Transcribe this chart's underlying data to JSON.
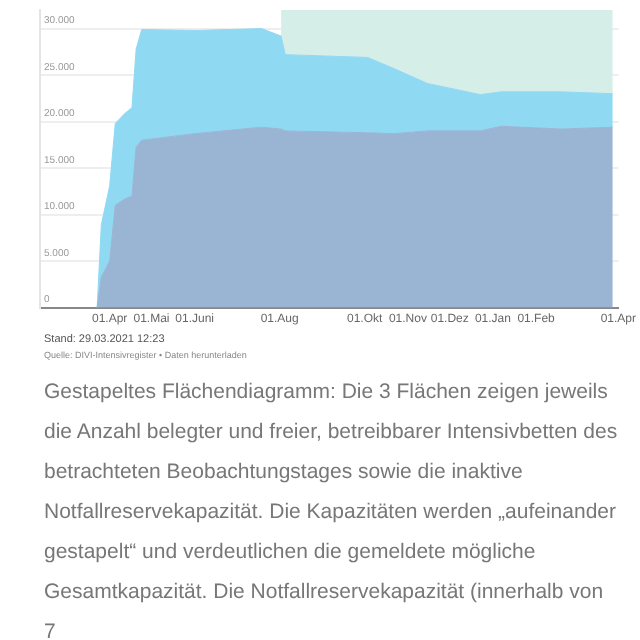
{
  "chart_data": {
    "type": "area",
    "stacked": true,
    "x": [
      "2020-03-23",
      "2020-03-26",
      "2020-04-01",
      "2020-04-05",
      "2020-04-12",
      "2020-04-17",
      "2020-04-20",
      "2020-04-24",
      "2020-06-01",
      "2020-07-19",
      "2020-08-02",
      "2020-08-05",
      "2020-10-03",
      "2020-10-22",
      "2020-11-15",
      "2020-12-23",
      "2021-01-07",
      "2021-02-19",
      "2021-03-28"
    ],
    "series": [
      {
        "color": "#9ab5d3",
        "values": [
          0,
          3300,
          5000,
          11000,
          11700,
          12000,
          17300,
          18000,
          18700,
          19400,
          19200,
          19000,
          18800,
          18700,
          19000,
          19000,
          19500,
          19200,
          19400
        ]
      },
      {
        "color": "#8fd9f3",
        "values": [
          0,
          5600,
          8100,
          8800,
          9200,
          9500,
          10500,
          11900,
          11100,
          10600,
          10000,
          8200,
          8100,
          7000,
          5100,
          3900,
          3700,
          4000,
          3600
        ]
      },
      {
        "color": "#d6eee8",
        "values": [
          null,
          null,
          null,
          null,
          null,
          null,
          null,
          null,
          null,
          null,
          2800,
          4800,
          5100,
          6300,
          7900,
          9100,
          8800,
          8800,
          9000
        ]
      }
    ],
    "xlim": [
      "2020-02-11",
      "2021-04-01"
    ],
    "xticks": [
      {
        "value": "2020-04-01",
        "label": "01.Apr"
      },
      {
        "value": "2020-05-01",
        "label": "01.Mai"
      },
      {
        "value": "2020-06-01",
        "label": "01.Juni"
      },
      {
        "value": "2020-08-01",
        "label": "01.Aug"
      },
      {
        "value": "2020-10-01",
        "label": "01.Okt"
      },
      {
        "value": "2020-11-01",
        "label": "01.Nov"
      },
      {
        "value": "2020-12-01",
        "label": "01.Dez"
      },
      {
        "value": "2021-01-01",
        "label": "01.Jan"
      },
      {
        "value": "2021-02-01",
        "label": "01.Feb"
      },
      {
        "value": "2021-04-01",
        "label": "01.Apr"
      }
    ],
    "ylim": [
      0,
      32000
    ],
    "yticks": [
      0,
      {
        "value": 5000,
        "label": "5.000"
      },
      {
        "value": 10000,
        "label": "10.000"
      },
      {
        "value": 15000,
        "label": "15.000"
      },
      {
        "value": 20000,
        "label": "20.000"
      },
      {
        "value": 25000,
        "label": "25.000"
      },
      {
        "value": 30000,
        "label": "30.000"
      }
    ],
    "grid": "y",
    "legend": false,
    "annotations": [
      "Stand: 29.03.2021 12:23",
      "Quelle: DIVI-Intensivregister • Daten herunterladen",
      "Gestapeltes Flächendiagramm: Die 3 Flächen zeigen jeweils die Anzahl belegter und freier, betreibbarer Intensivbetten des betrachteten Beobachtungstages sowie die inaktive Notfallreservekapazität. Die Kapazitäten werden „aufeinander gestapelt“ und verdeutlichen die gemeldete mögliche Gesamtkapazität. Die Notfallreservekapazität (innerhalb von 7"
    ]
  }
}
